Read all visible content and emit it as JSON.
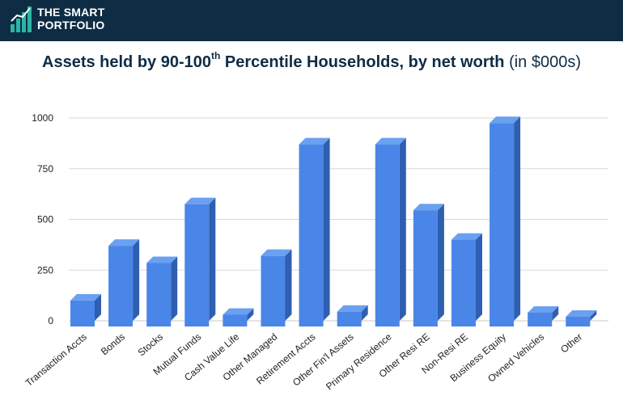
{
  "brand": {
    "line1": "THE SMART",
    "line2": "PORTFOLIO",
    "accent_color": "#2bb5a6",
    "bg_color": "#0f2c45"
  },
  "title": {
    "main": "Assets held by 90-100",
    "superscript": "th",
    "rest": " Percentile Households, by net worth ",
    "unit": "(in $000s)"
  },
  "chart_data": {
    "type": "bar",
    "title": "Assets held by 90-100th Percentile Households, by net worth (in $000s)",
    "xlabel": "",
    "ylabel": "",
    "ylim": [
      0,
      1000
    ],
    "yticks": [
      0,
      250,
      500,
      750,
      1000
    ],
    "grid": true,
    "bar_color": "#4a86e8",
    "categories": [
      "Transaction Accts",
      "Bonds",
      "Stocks",
      "Mutual Funds",
      "Cash Value Life",
      "Other Managed",
      "Retirement Accts",
      "Other Fin'l Assets",
      "Primary Residence",
      "Other Resi RE",
      "Non-Resi RE",
      "Business Equity",
      "Owned Vehicles",
      "Other"
    ],
    "values": [
      100,
      370,
      285,
      575,
      30,
      320,
      870,
      45,
      870,
      545,
      400,
      975,
      40,
      20
    ]
  }
}
